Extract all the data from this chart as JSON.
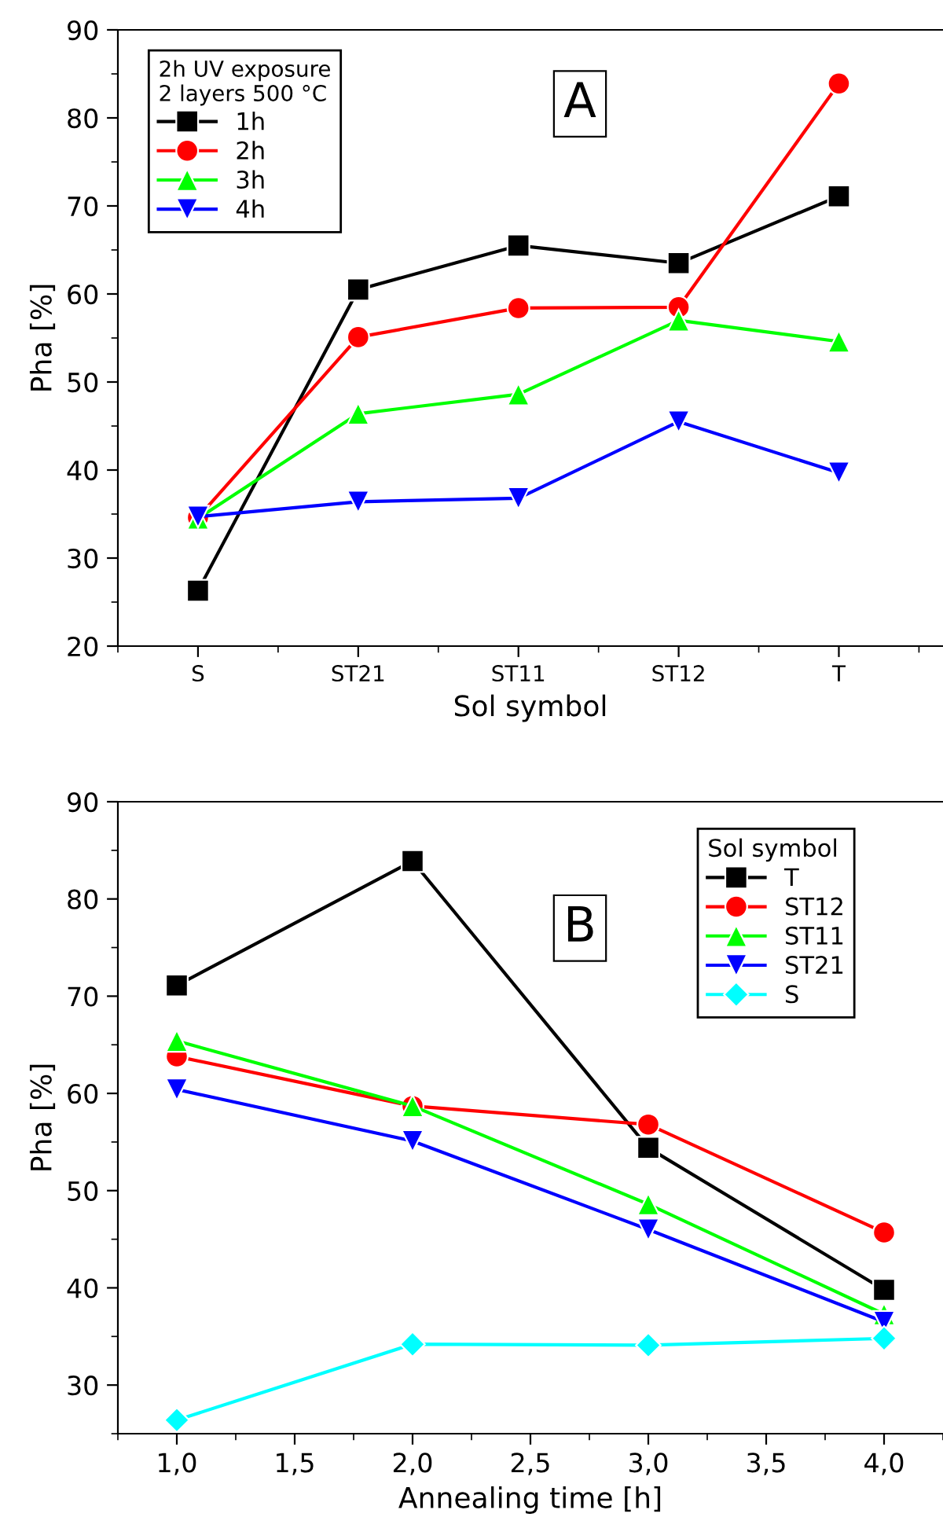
{
  "chart_data": [
    {
      "type": "line",
      "xlabel": "Sol symbol",
      "ylabel": "Pha [%]",
      "legend_title": "2h UV exposure\n2 layers 500 °C",
      "annotations": [
        "A"
      ],
      "categories": [
        "S",
        "ST21",
        "ST11",
        "ST12",
        "T"
      ],
      "ylim": [
        20,
        90
      ],
      "yticks": [
        20,
        30,
        40,
        50,
        60,
        70,
        80,
        90
      ],
      "legend": "top left",
      "grid": false,
      "series": [
        {
          "name": "1h",
          "color": "#000000",
          "marker": "square",
          "values": [
            26.3,
            60.5,
            65.5,
            63.5,
            71.1
          ]
        },
        {
          "name": "2h",
          "color": "#ff0000",
          "marker": "circle",
          "values": [
            34.6,
            55.1,
            58.4,
            58.5,
            83.9
          ]
        },
        {
          "name": "3h",
          "color": "#00ff00",
          "marker": "triangle",
          "values": [
            34.5,
            46.4,
            48.6,
            57.0,
            54.6
          ]
        },
        {
          "name": "4h",
          "color": "#0000ff",
          "marker": "triangle_down",
          "values": [
            34.7,
            36.4,
            36.8,
            45.5,
            39.7
          ]
        }
      ]
    },
    {
      "type": "line",
      "xlabel": "Annealing time [h]",
      "ylabel": "Pha [%]",
      "legend_title": "Sol symbol",
      "annotations": [
        "B"
      ],
      "x": [
        1.0,
        2.0,
        3.0,
        4.0
      ],
      "xlim": [
        0.75,
        4.25
      ],
      "xticks": [
        {
          "value": 1.0,
          "label": "1,0"
        },
        {
          "value": 1.5,
          "label": "1,5"
        },
        {
          "value": 2.0,
          "label": "2,0"
        },
        {
          "value": 2.5,
          "label": "2,5"
        },
        {
          "value": 3.0,
          "label": "3,0"
        },
        {
          "value": 3.5,
          "label": "3,5"
        },
        {
          "value": 4.0,
          "label": "4,0"
        }
      ],
      "ylim": [
        25,
        90
      ],
      "yticks": [
        30,
        40,
        50,
        60,
        70,
        80,
        90
      ],
      "legend": "top right",
      "grid": false,
      "series": [
        {
          "name": "T",
          "color": "#000000",
          "marker": "square",
          "values": [
            71.1,
            83.9,
            54.4,
            39.8
          ]
        },
        {
          "name": "ST12",
          "color": "#ff0000",
          "marker": "circle",
          "values": [
            63.8,
            58.7,
            56.8,
            45.7
          ]
        },
        {
          "name": "ST11",
          "color": "#00ff00",
          "marker": "triangle",
          "values": [
            65.4,
            58.7,
            48.6,
            37.3
          ]
        },
        {
          "name": "ST21",
          "color": "#0000ff",
          "marker": "triangle_down",
          "values": [
            60.4,
            55.1,
            46.0,
            36.5
          ]
        },
        {
          "name": "S",
          "color": "#00ffff",
          "marker": "diamond",
          "values": [
            26.4,
            34.2,
            34.1,
            34.8
          ]
        }
      ]
    }
  ]
}
